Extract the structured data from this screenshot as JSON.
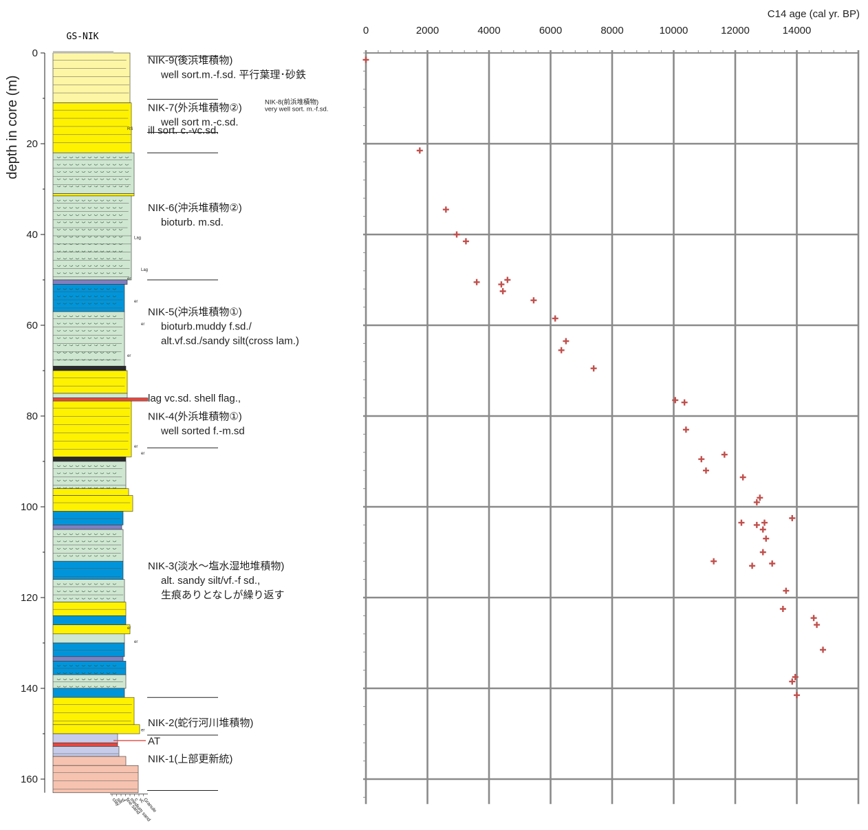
{
  "core": {
    "title": "GS-NIK",
    "depth_axis_label": "depth in core (m)",
    "depth_ticks": [
      0,
      20,
      40,
      60,
      80,
      100,
      120,
      140,
      160
    ],
    "depth_range": [
      0,
      163
    ],
    "grain_scale_labels": [
      "clay",
      "silt",
      "vf",
      "fine sand",
      "medium sand",
      "c",
      "vc",
      "Granule"
    ],
    "annotations": [
      {
        "depth": 17,
        "text": "RS"
      },
      {
        "depth": 41,
        "text": "Lag"
      },
      {
        "depth": 48,
        "text": "Lag"
      },
      {
        "depth": 50,
        "text": "er"
      },
      {
        "depth": 55,
        "text": "er"
      },
      {
        "depth": 60,
        "text": "er"
      },
      {
        "depth": 67,
        "text": "er"
      },
      {
        "depth": 87,
        "text": "er"
      },
      {
        "depth": 88.5,
        "text": "er"
      },
      {
        "depth": 127,
        "text": "er"
      },
      {
        "depth": 130,
        "text": "er"
      },
      {
        "depth": 149.5,
        "text": "er"
      }
    ],
    "units": [
      {
        "id": "nik9",
        "depth": 0.5,
        "lines": [
          "NIK-9(後浜堆積物)",
          "well sort.m.-f.sd. 平行葉理･砂鉄"
        ]
      },
      {
        "id": "nik8",
        "depth": 9.5,
        "lines": [
          "NIK-8(前浜堆積物)",
          "very well sort. m.-f.sd."
        ]
      },
      {
        "id": "nik7",
        "depth": 11,
        "lines": [
          "NIK-7(外浜堆積物②)",
          "well sort m.-c.sd."
        ]
      },
      {
        "id": "nik7b",
        "depth": 16,
        "lines": [
          "ill sort. c.-vc.sd."
        ]
      },
      {
        "id": "nik6",
        "depth": 33,
        "lines": [
          "NIK-6(沖浜堆積物②)",
          "bioturb. m.sd."
        ]
      },
      {
        "id": "nik5",
        "depth": 56,
        "lines": [
          "NIK-5(沖浜堆積物①)",
          "bioturb.muddy f.sd./",
          "alt.vf.sd./sandy silt(cross lam.)"
        ]
      },
      {
        "id": "lag",
        "depth": 75,
        "lines": [
          "lag    vc.sd. shell flag.,"
        ]
      },
      {
        "id": "nik4",
        "depth": 79,
        "lines": [
          "NIK-4(外浜堆積物①)",
          "well sorted f.-m.sd"
        ]
      },
      {
        "id": "nik3",
        "depth": 112,
        "lines": [
          "NIK-3(淡水～塩水湿地堆積物)",
          "alt. sandy silt/vf.-f sd.,",
          "生痕ありとなしが繰り返す"
        ]
      },
      {
        "id": "nik2",
        "depth": 146.5,
        "lines": [
          "NIK-2(蛇行河川堆積物)"
        ]
      },
      {
        "id": "at",
        "depth": 150.5,
        "lines": [
          "AT"
        ]
      },
      {
        "id": "nik1",
        "depth": 154.5,
        "lines": [
          "NIK-1(上部更新統)"
        ]
      }
    ]
  },
  "chart_data": {
    "type": "scatter",
    "xlabel": "C14 age (cal yr. BP)",
    "ylabel": "depth in core (m)",
    "xlim": [
      0,
      16000
    ],
    "ylim": [
      0,
      160
    ],
    "x_ticks": [
      0,
      2000,
      4000,
      6000,
      8000,
      10000,
      12000,
      14000
    ],
    "grid": true,
    "marker_color": "#c0504d",
    "points": [
      {
        "x": 0,
        "y": 1.5
      },
      {
        "x": 1750,
        "y": 21.5
      },
      {
        "x": 2600,
        "y": 34.5
      },
      {
        "x": 2950,
        "y": 40
      },
      {
        "x": 3250,
        "y": 41.5
      },
      {
        "x": 3600,
        "y": 50.5
      },
      {
        "x": 4400,
        "y": 51
      },
      {
        "x": 4600,
        "y": 50
      },
      {
        "x": 4450,
        "y": 52.5
      },
      {
        "x": 5450,
        "y": 54.5
      },
      {
        "x": 6150,
        "y": 58.5
      },
      {
        "x": 6500,
        "y": 63.5
      },
      {
        "x": 6350,
        "y": 65.5
      },
      {
        "x": 7400,
        "y": 69.5
      },
      {
        "x": 10050,
        "y": 76.5
      },
      {
        "x": 10350,
        "y": 77
      },
      {
        "x": 10400,
        "y": 83
      },
      {
        "x": 10900,
        "y": 89.5
      },
      {
        "x": 11650,
        "y": 88.5
      },
      {
        "x": 11050,
        "y": 92
      },
      {
        "x": 12250,
        "y": 93.5
      },
      {
        "x": 12800,
        "y": 98
      },
      {
        "x": 12700,
        "y": 99
      },
      {
        "x": 13850,
        "y": 102.5
      },
      {
        "x": 12200,
        "y": 103.5
      },
      {
        "x": 12700,
        "y": 104
      },
      {
        "x": 12950,
        "y": 103.5
      },
      {
        "x": 12900,
        "y": 105
      },
      {
        "x": 13000,
        "y": 107
      },
      {
        "x": 12900,
        "y": 110
      },
      {
        "x": 11300,
        "y": 112
      },
      {
        "x": 12550,
        "y": 113
      },
      {
        "x": 13200,
        "y": 112.5
      },
      {
        "x": 13650,
        "y": 118.5
      },
      {
        "x": 13550,
        "y": 122.5
      },
      {
        "x": 14550,
        "y": 124.5
      },
      {
        "x": 14650,
        "y": 126
      },
      {
        "x": 14850,
        "y": 131.5
      },
      {
        "x": 13950,
        "y": 137.5
      },
      {
        "x": 13850,
        "y": 138.5
      },
      {
        "x": 14000,
        "y": 141.5
      }
    ]
  }
}
